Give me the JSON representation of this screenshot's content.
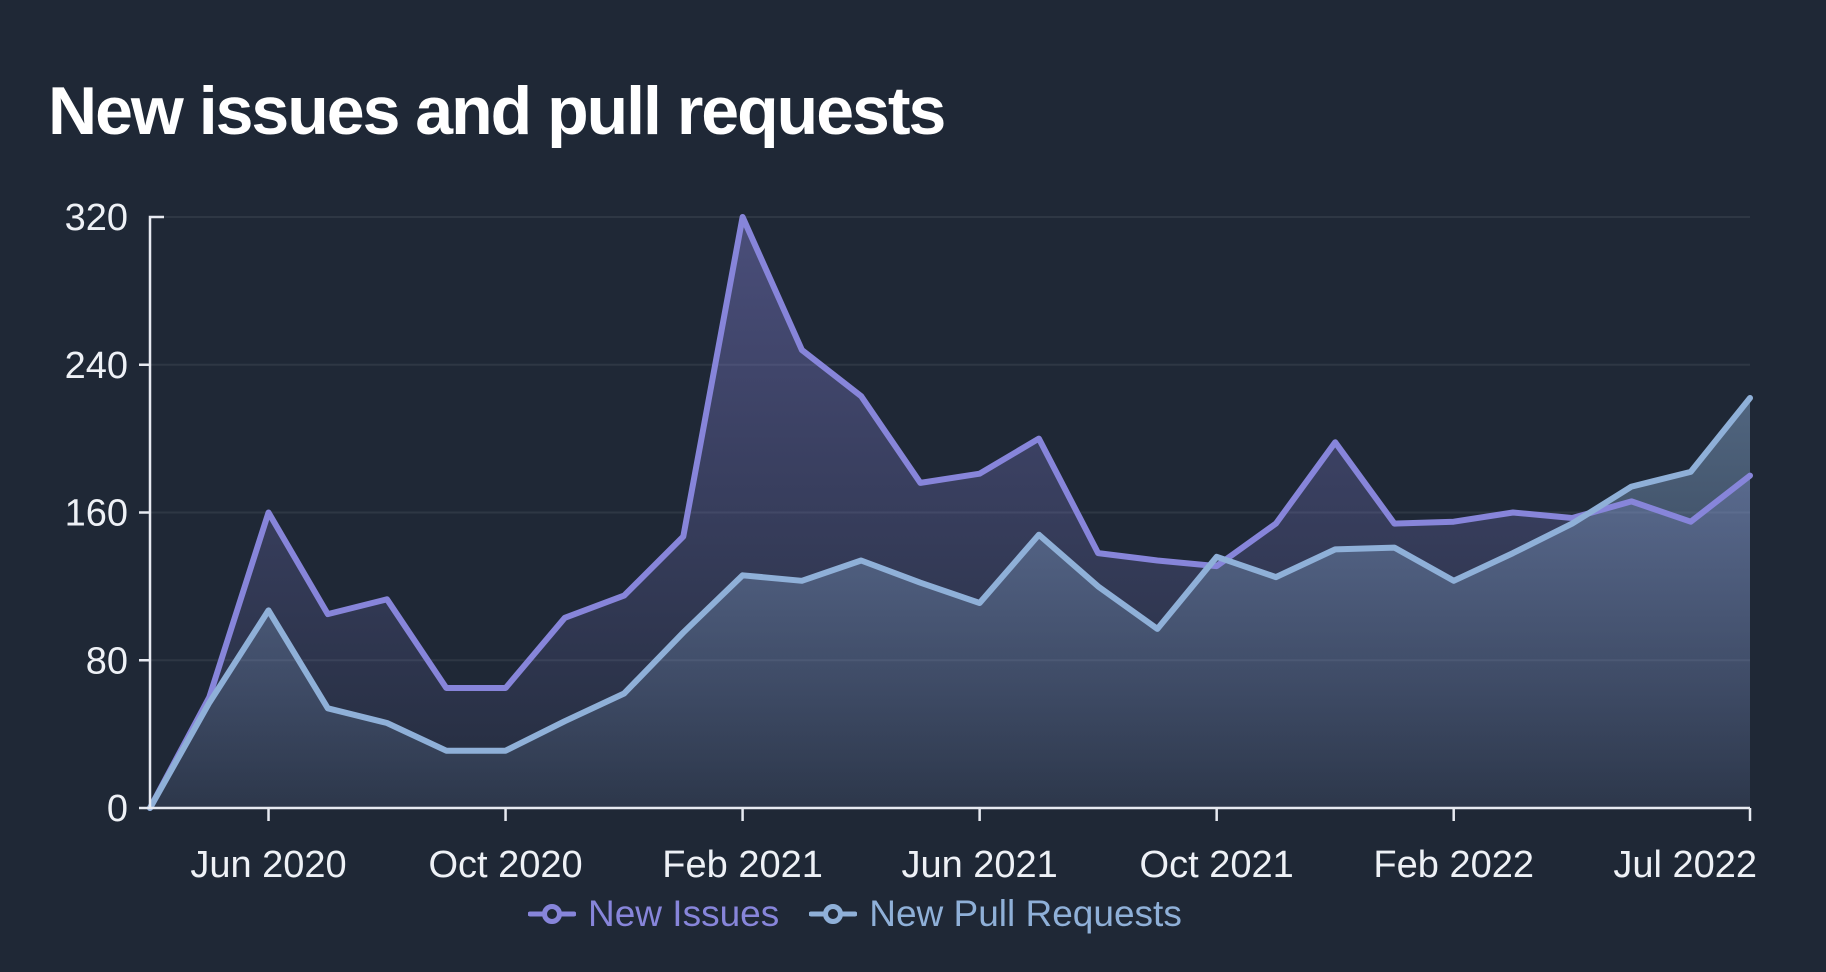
{
  "title": "New issues and pull requests",
  "colors": {
    "background": "#1f2836",
    "title_text": "#ffffff",
    "axis_line": "#e7eaf1",
    "tick_label": "#eef1f6",
    "gridline": "rgba(255,255,255,0.07)"
  },
  "chart_data": {
    "type": "line",
    "title": "New issues and pull requests",
    "xlabel": "",
    "ylabel": "",
    "ylim": [
      0,
      320
    ],
    "y_ticks": [
      0,
      80,
      160,
      240,
      320
    ],
    "grid": "horizontal",
    "legend_position": "bottom-center",
    "x": [
      "Apr 2020",
      "May 2020",
      "Jun 2020",
      "Jul 2020",
      "Aug 2020",
      "Sep 2020",
      "Oct 2020",
      "Nov 2020",
      "Dec 2020",
      "Jan 2021",
      "Feb 2021",
      "Mar 2021",
      "Apr 2021",
      "May 2021",
      "Jun 2021",
      "Jul 2021",
      "Aug 2021",
      "Sep 2021",
      "Oct 2021",
      "Nov 2021",
      "Dec 2021",
      "Jan 2022",
      "Feb 2022",
      "Mar 2022",
      "Apr 2022",
      "May 2022",
      "Jun 2022",
      "Jul 2022"
    ],
    "x_tick_indices": [
      2,
      6,
      10,
      14,
      18,
      22,
      27
    ],
    "x_tick_labels": [
      "Jun 2020",
      "Oct 2020",
      "Feb 2021",
      "Jun 2021",
      "Oct 2021",
      "Feb 2022",
      "Jul 2022"
    ],
    "series": [
      {
        "name": "New Issues",
        "color": "#8785da",
        "fill_top": "rgba(133,130,215,0.42)",
        "fill_bottom": "rgba(133,130,215,0.05)",
        "values": [
          0,
          60,
          160,
          105,
          113,
          65,
          65,
          103,
          115,
          147,
          320,
          248,
          223,
          176,
          181,
          200,
          138,
          134,
          131,
          154,
          198,
          154,
          155,
          160,
          157,
          166,
          155,
          180
        ]
      },
      {
        "name": "New Pull Requests",
        "color": "#8fb0d8",
        "fill_top": "rgba(140,175,216,0.45)",
        "fill_bottom": "rgba(140,175,216,0.08)",
        "values": [
          0,
          57,
          107,
          54,
          46,
          31,
          31,
          47,
          62,
          95,
          126,
          123,
          134,
          122,
          111,
          148,
          120,
          97,
          136,
          125,
          140,
          141,
          123,
          138,
          154,
          174,
          182,
          222
        ]
      }
    ]
  }
}
